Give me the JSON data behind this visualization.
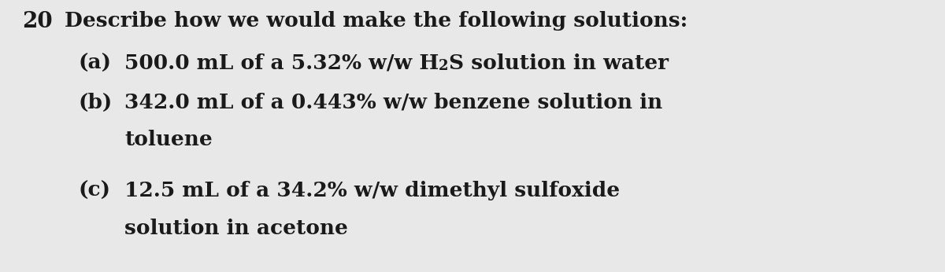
{
  "background_color": "#e8e8e8",
  "text_color": "#1a1a1a",
  "question_number": "20",
  "header": "Describe how we would make the following solutions:",
  "item_a_label": "(a)",
  "item_a_prefix": "500.0 mL of a 5.32% w/w H",
  "item_a_sub": "2",
  "item_a_suffix": "S solution in water",
  "item_b_label": "(b)",
  "item_b_line1": "342.0 mL of a 0.443% w/w benzene solution in",
  "item_b_line2": "toluene",
  "item_c_label": "(c)",
  "item_c_line1": "12.5 mL of a 34.2% w/w dimethyl sulfoxide",
  "item_c_line2": "solution in acetone",
  "font_family": "DejaVu Serif",
  "header_fontsize": 19,
  "item_fontsize": 19,
  "qnum_fontsize": 20,
  "sub_fontsize": 13
}
